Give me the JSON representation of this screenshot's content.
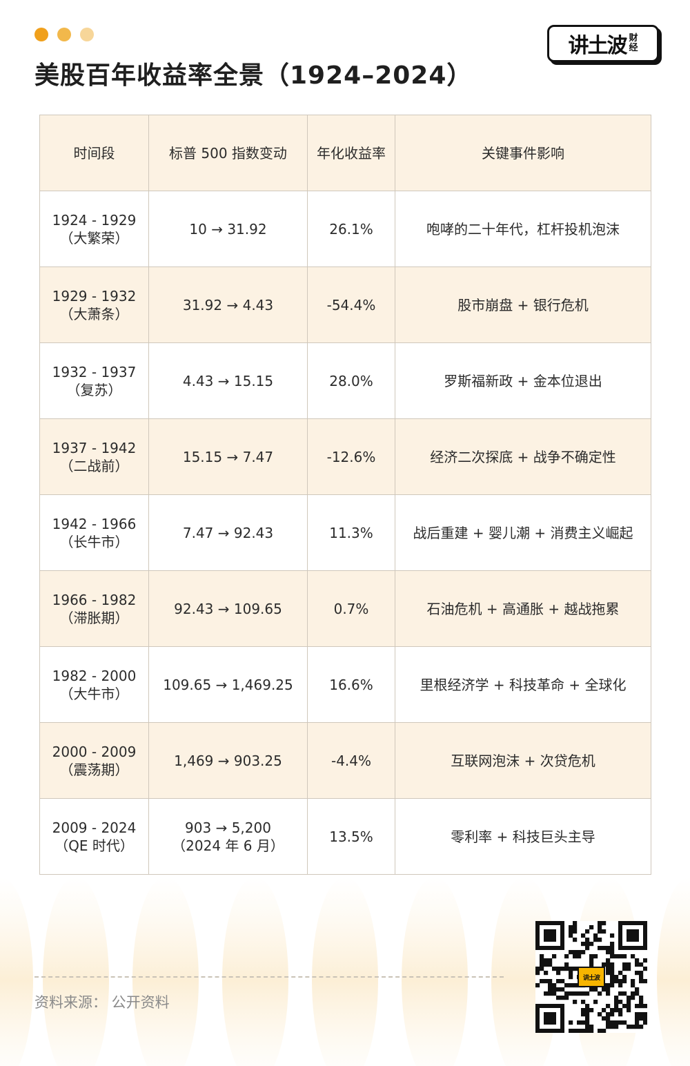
{
  "header": {
    "title": "美股百年收益率全景（1924–2024）",
    "dot_colors": [
      "#f0a01c",
      "#f2b84b",
      "#f7d699"
    ]
  },
  "logo": {
    "main": "讲土波",
    "sub1": "财",
    "sub2": "经"
  },
  "table": {
    "headers": [
      "时间段",
      "标普 500 指数变动",
      "年化收益率",
      "关键事件影响"
    ],
    "rows": [
      {
        "period": "1924 - 1929",
        "label": "（大繁荣）",
        "change": "10 → 31.92",
        "change2": "",
        "rate": "26.1%",
        "event": "咆哮的二十年代，杠杆投机泡沫"
      },
      {
        "period": "1929 - 1932",
        "label": "（大萧条）",
        "change": "31.92 → 4.43",
        "change2": "",
        "rate": "-54.4%",
        "event": "股市崩盘 + 银行危机"
      },
      {
        "period": "1932 - 1937",
        "label": "（复苏）",
        "change": "4.43 → 15.15",
        "change2": "",
        "rate": "28.0%",
        "event": "罗斯福新政 + 金本位退出"
      },
      {
        "period": "1937 - 1942",
        "label": "（二战前）",
        "change": "15.15 → 7.47",
        "change2": "",
        "rate": "-12.6%",
        "event": "经济二次探底 + 战争不确定性"
      },
      {
        "period": "1942 - 1966",
        "label": "（长牛市）",
        "change": "7.47 → 92.43",
        "change2": "",
        "rate": "11.3%",
        "event": "战后重建 + 婴儿潮 + 消费主义崛起"
      },
      {
        "period": "1966 - 1982",
        "label": "（滞胀期）",
        "change": "92.43 → 109.65",
        "change2": "",
        "rate": "0.7%",
        "event": "石油危机 + 高通胀 + 越战拖累"
      },
      {
        "period": "1982 - 2000",
        "label": "（大牛市）",
        "change": "109.65 → 1,469.25",
        "change2": "",
        "rate": "16.6%",
        "event": "里根经济学 + 科技革命 + 全球化"
      },
      {
        "period": "2000 - 2009",
        "label": "（震荡期）",
        "change": "1,469 → 903.25",
        "change2": "",
        "rate": "-4.4%",
        "event": "互联网泡沫 + 次贷危机"
      },
      {
        "period": "2009 - 2024",
        "label": "（QE 时代）",
        "change": "903 → 5,200",
        "change2": "（2024 年 6 月）",
        "rate": "13.5%",
        "event": "零利率 + 科技巨头主导"
      }
    ]
  },
  "footer": {
    "source": "资料来源：  公开资料"
  }
}
